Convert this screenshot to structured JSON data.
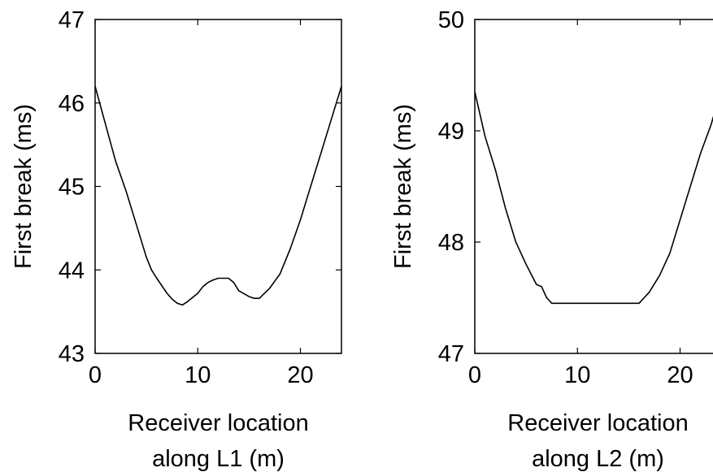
{
  "chart_data": [
    {
      "type": "line",
      "title": "",
      "xlabel": [
        "Receiver location",
        "along L1 (m)"
      ],
      "ylabel": "First break (ms)",
      "xlim": [
        0,
        24
      ],
      "ylim": [
        43,
        47
      ],
      "xticks": [
        "0",
        "10",
        "20"
      ],
      "yticks": [
        "43",
        "44",
        "45",
        "46",
        "47"
      ],
      "grid": false,
      "series": [
        {
          "x": [
            0,
            1,
            2,
            3,
            4,
            5,
            5.5,
            6,
            7,
            7.5,
            8,
            8.5,
            9,
            10,
            10.5,
            11,
            11.5,
            12,
            13,
            13.5,
            14,
            15,
            15.5,
            16,
            17,
            18,
            19,
            20,
            21,
            22,
            23,
            24
          ],
          "y": [
            46.2,
            45.75,
            45.3,
            44.95,
            44.55,
            44.15,
            44.0,
            43.9,
            43.72,
            43.65,
            43.6,
            43.58,
            43.62,
            43.72,
            43.8,
            43.85,
            43.88,
            43.9,
            43.9,
            43.85,
            43.75,
            43.68,
            43.66,
            43.66,
            43.78,
            43.95,
            44.25,
            44.6,
            45.0,
            45.4,
            45.8,
            46.2
          ]
        }
      ]
    },
    {
      "type": "line",
      "title": "",
      "xlabel": [
        "Receiver location",
        "along L2 (m)"
      ],
      "ylabel": "First break (ms)",
      "xlim": [
        0,
        24
      ],
      "ylim": [
        47,
        50
      ],
      "xticks": [
        "0",
        "10",
        "20"
      ],
      "yticks": [
        "47",
        "48",
        "49",
        "50"
      ],
      "grid": false,
      "series": [
        {
          "x": [
            0,
            1,
            2,
            3,
            4,
            5,
            6,
            6.5,
            7,
            7.5,
            8,
            10,
            12,
            14,
            16,
            16.5,
            17,
            18,
            19,
            20,
            21,
            22,
            23,
            23.8
          ],
          "y": [
            49.35,
            48.95,
            48.65,
            48.3,
            48.0,
            47.8,
            47.62,
            47.6,
            47.5,
            47.45,
            47.45,
            47.45,
            47.45,
            47.45,
            47.45,
            47.5,
            47.55,
            47.7,
            47.9,
            48.2,
            48.5,
            48.8,
            49.05,
            49.3
          ]
        }
      ]
    }
  ]
}
